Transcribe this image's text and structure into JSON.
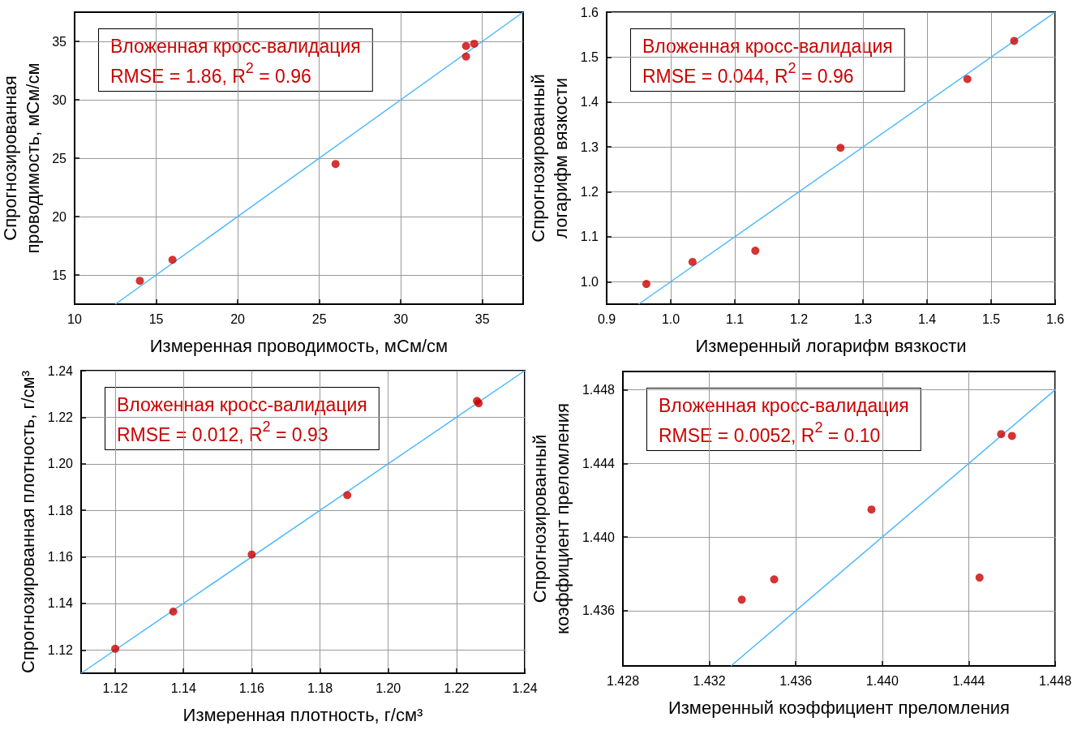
{
  "chart_data": [
    {
      "type": "scatter",
      "xlabel": "Измеренная проводимость, мСм/см",
      "ylabel": "Спрогнозированная проводимость, мСм/см",
      "xlim": [
        10,
        37.5
      ],
      "ylim": [
        12.5,
        37.5
      ],
      "xticks": [
        10,
        15,
        20,
        25,
        30,
        35
      ],
      "yticks": [
        15,
        20,
        25,
        30,
        35
      ],
      "grid": true,
      "annotations": [
        "Вложенная кросс-валидация",
        "RMSE = 1.86, R$^{2}$ = 0.96"
      ],
      "series": [
        {
          "type": "scatter",
          "marker": "circle",
          "color": "#cc0000",
          "x": [
            14,
            16,
            26,
            34,
            34,
            34.5
          ],
          "values": [
            14.5,
            16.3,
            24.5,
            34.6,
            33.7,
            34.8
          ]
        },
        {
          "type": "line",
          "color": "#4db8ff",
          "x": [
            12.5,
            37.5
          ],
          "values": [
            12.5,
            37.5
          ]
        }
      ]
    },
    {
      "type": "scatter",
      "xlabel": "Измеренный логарифм вязкости",
      "ylabel": "Спрогнозированный логарифм вязкости",
      "xlim": [
        0.9,
        1.6
      ],
      "ylim": [
        0.95,
        1.6
      ],
      "xticks": [
        0.9,
        {
          "value": 1,
          "label": "1.0"
        },
        1.1,
        1.2,
        1.3,
        1.4,
        1.5,
        1.6
      ],
      "yticks": [
        {
          "value": 1,
          "label": "1.0"
        },
        1.1,
        1.2,
        1.3,
        1.4,
        1.5,
        1.6
      ],
      "grid": true,
      "annotations": [
        "Вложенная кросс-валидация",
        "RMSE = 0.044, R$^{2}$ = 0.96"
      ],
      "series": [
        {
          "type": "scatter",
          "marker": "circle",
          "color": "#cc0000",
          "x": [
            0.962,
            1.034,
            1.132,
            1.265,
            1.463,
            1.536
          ],
          "values": [
            0.995,
            1.044,
            1.069,
            1.298,
            1.451,
            1.536
          ]
        },
        {
          "type": "line",
          "color": "#4db8ff",
          "x": [
            0.95,
            1.6
          ],
          "values": [
            0.95,
            1.6
          ]
        }
      ]
    },
    {
      "type": "scatter",
      "xlabel": "Измеренная плотность, г/см³",
      "ylabel": "Спрогнозированная плотность, г/см³",
      "xlim": [
        1.11,
        1.24
      ],
      "ylim": [
        1.11,
        1.24
      ],
      "xticks": [
        1.12,
        1.14,
        1.16,
        1.18,
        {
          "value": 1.2,
          "label": "1.20"
        },
        1.22,
        1.24
      ],
      "yticks": [
        1.12,
        1.14,
        1.16,
        1.18,
        {
          "value": 1.2,
          "label": "1.20"
        },
        1.22,
        1.24
      ],
      "grid": true,
      "annotations": [
        "Вложенная кросс-валидация",
        "RMSE = 0.012, R$^{2}$ = 0.93"
      ],
      "series": [
        {
          "type": "scatter",
          "marker": "circle",
          "color": "#cc0000",
          "x": [
            1.12,
            1.137,
            1.16,
            1.188,
            1.226,
            1.2265
          ],
          "values": [
            1.1205,
            1.1365,
            1.161,
            1.1865,
            1.227,
            1.226
          ]
        },
        {
          "type": "line",
          "color": "#4db8ff",
          "x": [
            1.11,
            1.24
          ],
          "values": [
            1.11,
            1.24
          ]
        }
      ]
    },
    {
      "type": "scatter",
      "xlabel": "Измеренный коэффициент преломления",
      "ylabel": "Спрогнозированный коэффициент преломления",
      "xlim": [
        1.428,
        1.448
      ],
      "ylim": [
        1.433,
        1.449
      ],
      "xticks": [
        1.428,
        1.432,
        1.436,
        {
          "value": 1.44,
          "label": "1.440"
        },
        1.444,
        1.448
      ],
      "yticks": [
        1.436,
        {
          "value": 1.44,
          "label": "1.440"
        },
        1.444,
        1.448
      ],
      "grid": true,
      "annotations": [
        "Вложенная кросс-валидация",
        "RMSE = 0.0052, R$^{2}$ = 0.10"
      ],
      "series": [
        {
          "type": "scatter",
          "marker": "circle",
          "color": "#cc0000",
          "x": [
            1.4335,
            1.435,
            1.4395,
            1.4445,
            1.4455,
            1.446
          ],
          "values": [
            1.4366,
            1.4377,
            1.4415,
            1.4378,
            1.4456,
            1.4455
          ]
        },
        {
          "type": "line",
          "color": "#4db8ff",
          "x": [
            1.433,
            1.448
          ],
          "values": [
            1.433,
            1.448
          ]
        }
      ]
    }
  ]
}
